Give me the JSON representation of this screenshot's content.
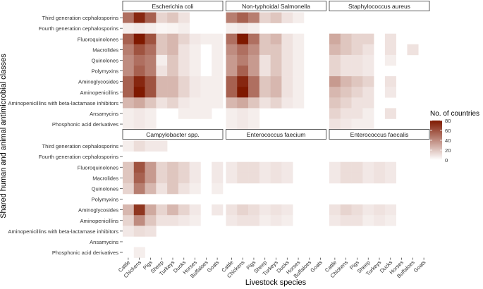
{
  "chart_data": {
    "type": "heatmap",
    "xlabel": "Livestock species",
    "ylabel": "Shared human and animal antimicrobial classes",
    "legend_title": "No. of countries",
    "legend_ticks": [
      0,
      20,
      40,
      60,
      80
    ],
    "value_range": [
      0,
      80
    ],
    "color_low": "#ffffff",
    "color_high": "#7f1900",
    "species": [
      "Cattle",
      "Chickens",
      "Pigs",
      "Sheep",
      "Turkeys",
      "Ducks",
      "Horses",
      "Buffaloes",
      "Goats"
    ],
    "classes": [
      "Third generation cephalosporins",
      "Fourth generation cephalosporins",
      "Fluoroquinolones",
      "Macrolides",
      "Quinolones",
      "Polymyxins",
      "Aminoglycosides",
      "Aminopenicillins",
      "Aminopenicillins with beta-lactamase inhibitors",
      "Ansamycins",
      "Phosphonic acid derivatives"
    ],
    "panels": [
      {
        "title": "Escherichia coli",
        "values": [
          [
            50,
            75,
            55,
            15,
            20,
            10,
            0,
            0,
            0
          ],
          [
            6,
            8,
            6,
            3,
            4,
            6,
            0,
            0,
            0
          ],
          [
            55,
            80,
            60,
            20,
            25,
            15,
            8,
            6,
            6
          ],
          [
            45,
            60,
            50,
            20,
            25,
            10,
            6,
            0,
            6
          ],
          [
            40,
            50,
            45,
            6,
            20,
            10,
            6,
            0,
            6
          ],
          [
            40,
            55,
            45,
            10,
            20,
            10,
            6,
            0,
            6
          ],
          [
            55,
            75,
            60,
            25,
            25,
            15,
            8,
            6,
            6
          ],
          [
            55,
            80,
            60,
            25,
            25,
            15,
            8,
            6,
            6
          ],
          [
            25,
            30,
            20,
            10,
            15,
            8,
            6,
            6,
            6
          ],
          [
            6,
            8,
            6,
            0,
            0,
            6,
            6,
            6,
            0
          ],
          [
            6,
            8,
            6,
            0,
            0,
            0,
            0,
            0,
            0
          ]
        ]
      },
      {
        "title": "Non-typhoidal Salmonella",
        "values": [
          [
            45,
            55,
            45,
            15,
            20,
            10,
            6,
            0,
            0
          ],
          [
            6,
            8,
            6,
            0,
            0,
            0,
            0,
            0,
            0
          ],
          [
            50,
            80,
            50,
            20,
            25,
            10,
            6,
            0,
            0
          ],
          [
            40,
            50,
            40,
            20,
            20,
            10,
            6,
            0,
            0
          ],
          [
            35,
            45,
            35,
            10,
            20,
            10,
            6,
            0,
            0
          ],
          [
            35,
            55,
            35,
            10,
            20,
            10,
            6,
            0,
            0
          ],
          [
            55,
            75,
            50,
            20,
            25,
            10,
            6,
            0,
            0
          ],
          [
            55,
            80,
            50,
            20,
            25,
            10,
            6,
            0,
            0
          ],
          [
            25,
            30,
            20,
            10,
            15,
            8,
            6,
            0,
            0
          ],
          [
            6,
            8,
            6,
            0,
            0,
            0,
            0,
            0,
            0
          ],
          [
            6,
            8,
            6,
            0,
            0,
            0,
            0,
            0,
            0
          ]
        ]
      },
      {
        "title": "Staphylococcus aureus",
        "values": [
          [
            0,
            0,
            0,
            0,
            0,
            0,
            0,
            0,
            0
          ],
          [
            0,
            0,
            0,
            0,
            0,
            0,
            0,
            0,
            0
          ],
          [
            30,
            20,
            15,
            15,
            0,
            10,
            0,
            0,
            0
          ],
          [
            25,
            20,
            15,
            10,
            0,
            10,
            0,
            10,
            0
          ],
          [
            15,
            10,
            10,
            8,
            0,
            6,
            0,
            0,
            0
          ],
          [
            15,
            10,
            10,
            8,
            0,
            0,
            0,
            0,
            0
          ],
          [
            35,
            25,
            20,
            15,
            0,
            10,
            0,
            0,
            0
          ],
          [
            25,
            20,
            15,
            10,
            0,
            8,
            0,
            0,
            0
          ],
          [
            20,
            15,
            10,
            10,
            0,
            0,
            0,
            0,
            0
          ],
          [
            15,
            10,
            10,
            6,
            0,
            10,
            0,
            0,
            0
          ],
          [
            10,
            8,
            6,
            6,
            0,
            0,
            0,
            0,
            0
          ]
        ]
      },
      {
        "title": "Campylobacter spp.",
        "values": [
          [
            6,
            12,
            8,
            8,
            0,
            0,
            0,
            0,
            0
          ],
          [
            0,
            0,
            0,
            0,
            0,
            0,
            0,
            0,
            0
          ],
          [
            20,
            60,
            35,
            15,
            20,
            15,
            8,
            0,
            8
          ],
          [
            20,
            55,
            35,
            15,
            20,
            15,
            8,
            0,
            8
          ],
          [
            15,
            45,
            25,
            10,
            20,
            10,
            6,
            0,
            6
          ],
          [
            0,
            0,
            0,
            0,
            0,
            0,
            0,
            0,
            0
          ],
          [
            25,
            70,
            30,
            15,
            25,
            15,
            8,
            0,
            8
          ],
          [
            15,
            40,
            20,
            10,
            10,
            8,
            6,
            0,
            0
          ],
          [
            8,
            12,
            10,
            0,
            0,
            0,
            0,
            0,
            0
          ],
          [
            0,
            0,
            0,
            0,
            0,
            0,
            0,
            0,
            0
          ],
          [
            0,
            6,
            0,
            0,
            0,
            0,
            0,
            0,
            0
          ]
        ]
      },
      {
        "title": "Enterococcus faecium",
        "values": [
          [
            0,
            0,
            0,
            0,
            0,
            0,
            0,
            0,
            0
          ],
          [
            0,
            0,
            0,
            0,
            0,
            0,
            0,
            0,
            0
          ],
          [
            8,
            12,
            12,
            8,
            10,
            8,
            0,
            0,
            0
          ],
          [
            8,
            12,
            12,
            8,
            10,
            8,
            0,
            0,
            0
          ],
          [
            0,
            0,
            0,
            0,
            0,
            0,
            0,
            0,
            0
          ],
          [
            0,
            0,
            0,
            0,
            0,
            0,
            0,
            0,
            0
          ],
          [
            10,
            15,
            12,
            8,
            10,
            8,
            0,
            0,
            0
          ],
          [
            8,
            10,
            10,
            6,
            8,
            6,
            0,
            0,
            0
          ],
          [
            0,
            0,
            0,
            0,
            0,
            0,
            0,
            0,
            0
          ],
          [
            0,
            0,
            0,
            0,
            0,
            0,
            0,
            0,
            0
          ],
          [
            0,
            0,
            0,
            0,
            0,
            0,
            0,
            0,
            0
          ]
        ]
      },
      {
        "title": "Enterococcus faecalis",
        "values": [
          [
            0,
            0,
            0,
            0,
            0,
            0,
            0,
            0,
            0
          ],
          [
            0,
            0,
            0,
            0,
            0,
            0,
            0,
            0,
            0
          ],
          [
            8,
            12,
            12,
            8,
            10,
            8,
            0,
            0,
            0
          ],
          [
            8,
            12,
            12,
            8,
            10,
            8,
            0,
            0,
            0
          ],
          [
            0,
            0,
            0,
            0,
            0,
            0,
            0,
            0,
            0
          ],
          [
            0,
            0,
            0,
            0,
            0,
            0,
            0,
            0,
            0
          ],
          [
            10,
            15,
            12,
            8,
            10,
            8,
            0,
            0,
            0
          ],
          [
            8,
            10,
            10,
            6,
            8,
            6,
            0,
            0,
            0
          ],
          [
            0,
            0,
            0,
            0,
            0,
            0,
            0,
            0,
            0
          ],
          [
            0,
            0,
            0,
            0,
            0,
            0,
            0,
            0,
            0
          ],
          [
            0,
            0,
            0,
            0,
            0,
            0,
            0,
            0,
            0
          ]
        ]
      }
    ]
  }
}
